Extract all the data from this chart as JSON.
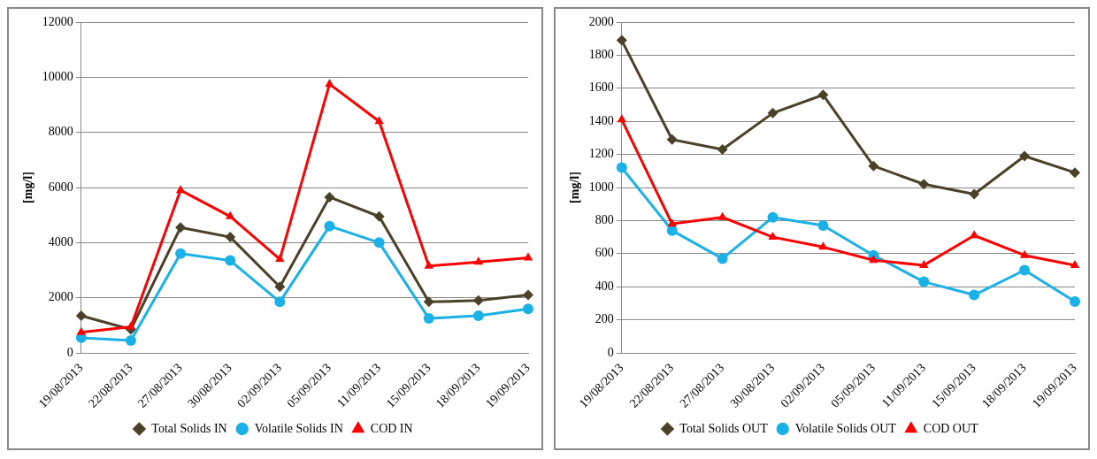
{
  "chart_data": [
    {
      "type": "line",
      "ylabel": "[mg/l]",
      "categories": [
        "19/08/2013",
        "22/08/2013",
        "27/08/2013",
        "30/08/2013",
        "02/09/2013",
        "05/09/2013",
        "11/09/2013",
        "15/09/2013",
        "18/09/2013",
        "19/09/2013"
      ],
      "series": [
        {
          "name": "Total Solids IN",
          "color": "#4a4228",
          "marker": "diamond",
          "values": [
            1350,
            850,
            4550,
            4200,
            2400,
            5650,
            4950,
            1850,
            1900,
            2100
          ]
        },
        {
          "name": "Volatile Solids IN",
          "color": "#1ab0e8",
          "marker": "circle",
          "values": [
            550,
            450,
            3600,
            3350,
            1850,
            4600,
            4000,
            1250,
            1350,
            1600
          ]
        },
        {
          "name": "COD IN",
          "color": "#ff0000",
          "marker": "triangle",
          "values": [
            750,
            950,
            5900,
            4950,
            3400,
            9750,
            8400,
            3150,
            3300,
            3450
          ]
        }
      ],
      "ylim": [
        0,
        12000
      ],
      "yticks": [
        0,
        2000,
        4000,
        6000,
        8000,
        10000,
        12000
      ],
      "grid": "y",
      "legend": "bottom"
    },
    {
      "type": "line",
      "ylabel": "[mg/l]",
      "categories": [
        "19/08/2013",
        "22/08/2013",
        "27/08/2013",
        "30/08/2013",
        "02/09/2013",
        "05/09/2013",
        "11/09/2013",
        "15/09/2013",
        "18/09/2013",
        "19/09/2013"
      ],
      "series": [
        {
          "name": "Total Solids OUT",
          "color": "#4a4228",
          "marker": "diamond",
          "values": [
            1890,
            1290,
            1230,
            1450,
            1560,
            1130,
            1020,
            960,
            1190,
            1090
          ]
        },
        {
          "name": "Volatile Solids OUT",
          "color": "#1ab0e8",
          "marker": "circle",
          "values": [
            1120,
            740,
            570,
            820,
            770,
            590,
            430,
            350,
            500,
            310
          ]
        },
        {
          "name": "COD OUT",
          "color": "#ff0000",
          "marker": "triangle",
          "values": [
            1410,
            780,
            820,
            700,
            640,
            560,
            530,
            710,
            590,
            530
          ]
        }
      ],
      "ylim": [
        0,
        2000
      ],
      "yticks": [
        0,
        200,
        400,
        600,
        800,
        1000,
        1200,
        1400,
        1600,
        1800,
        2000
      ],
      "grid": "y",
      "legend": "bottom"
    }
  ]
}
